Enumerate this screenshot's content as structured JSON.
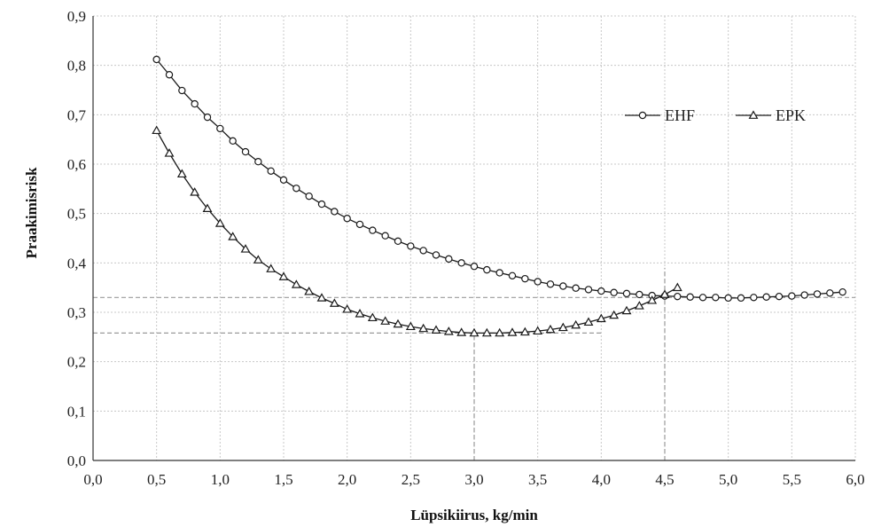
{
  "chart_data": {
    "type": "line",
    "title": "",
    "xlabel": "Lüpsikiirus, kg/min",
    "ylabel": "Praakimisrisk",
    "xlim": [
      0,
      6
    ],
    "ylim": [
      0,
      0.9
    ],
    "x_ticks": [
      "0,0",
      "0,5",
      "1,0",
      "1,5",
      "2,0",
      "2,5",
      "3,0",
      "3,5",
      "4,0",
      "4,5",
      "5,0",
      "5,5",
      "6,0"
    ],
    "y_ticks": [
      "0,0",
      "0,1",
      "0,2",
      "0,3",
      "0,4",
      "0,5",
      "0,6",
      "0,7",
      "0,8",
      "0,9"
    ],
    "grid": "dotted",
    "legend_position": "top-right",
    "series": [
      {
        "name": "EHF",
        "marker": "circle",
        "x": [
          0.5,
          0.6,
          0.7,
          0.8,
          0.9,
          1.0,
          1.1,
          1.2,
          1.3,
          1.4,
          1.5,
          1.6,
          1.7,
          1.8,
          1.9,
          2.0,
          2.1,
          2.2,
          2.3,
          2.4,
          2.5,
          2.6,
          2.7,
          2.8,
          2.9,
          3.0,
          3.1,
          3.2,
          3.3,
          3.4,
          3.5,
          3.6,
          3.7,
          3.8,
          3.9,
          4.0,
          4.1,
          4.2,
          4.3,
          4.4,
          4.5,
          4.6,
          4.7,
          4.8,
          4.9,
          5.0,
          5.1,
          5.2,
          5.3,
          5.4,
          5.5,
          5.6,
          5.7,
          5.8,
          5.9
        ],
        "values": [
          0.812,
          0.781,
          0.749,
          0.722,
          0.695,
          0.672,
          0.647,
          0.625,
          0.605,
          0.586,
          0.568,
          0.551,
          0.535,
          0.519,
          0.504,
          0.49,
          0.478,
          0.466,
          0.455,
          0.444,
          0.434,
          0.425,
          0.416,
          0.408,
          0.4,
          0.393,
          0.386,
          0.38,
          0.374,
          0.368,
          0.362,
          0.357,
          0.353,
          0.349,
          0.346,
          0.343,
          0.34,
          0.338,
          0.336,
          0.334,
          0.333,
          0.332,
          0.331,
          0.33,
          0.33,
          0.329,
          0.329,
          0.33,
          0.331,
          0.332,
          0.333,
          0.335,
          0.337,
          0.339,
          0.341
        ]
      },
      {
        "name": "EPK",
        "marker": "triangle",
        "x": [
          0.5,
          0.6,
          0.7,
          0.8,
          0.9,
          1.0,
          1.1,
          1.2,
          1.3,
          1.4,
          1.5,
          1.6,
          1.7,
          1.8,
          1.9,
          2.0,
          2.1,
          2.2,
          2.3,
          2.4,
          2.5,
          2.6,
          2.7,
          2.8,
          2.9,
          3.0,
          3.1,
          3.2,
          3.3,
          3.4,
          3.5,
          3.6,
          3.7,
          3.8,
          3.9,
          4.0,
          4.1,
          4.2,
          4.3,
          4.4,
          4.5,
          4.6
        ],
        "values": [
          0.668,
          0.622,
          0.58,
          0.543,
          0.51,
          0.48,
          0.453,
          0.428,
          0.406,
          0.388,
          0.372,
          0.356,
          0.342,
          0.329,
          0.318,
          0.306,
          0.297,
          0.289,
          0.282,
          0.276,
          0.271,
          0.267,
          0.264,
          0.261,
          0.259,
          0.258,
          0.258,
          0.258,
          0.259,
          0.26,
          0.262,
          0.265,
          0.269,
          0.274,
          0.28,
          0.287,
          0.294,
          0.303,
          0.313,
          0.324,
          0.336,
          0.35
        ]
      }
    ],
    "reference_lines": [
      {
        "axis": "y",
        "value": 0.33,
        "from_x": 0,
        "to_x": 6
      },
      {
        "axis": "y",
        "value": 0.258,
        "from_x": 0,
        "to_x": 4.0
      },
      {
        "axis": "x",
        "value": 3.0,
        "from_y": 0,
        "to_y": 0.258
      },
      {
        "axis": "x",
        "value": 4.5,
        "from_y": 0,
        "to_y": 0.39
      }
    ],
    "colors": {
      "line": "#1a1a1a",
      "marker_fill": "#ffffff",
      "grid": "#c8c8c8",
      "reference": "#9a9a9a"
    }
  }
}
